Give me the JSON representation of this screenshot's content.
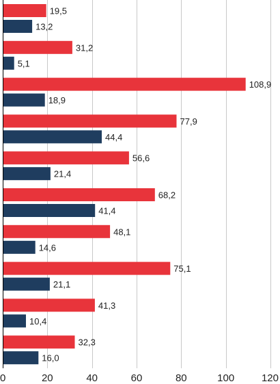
{
  "chart_data": {
    "type": "bar",
    "orientation": "horizontal",
    "grouped": true,
    "title": "",
    "xlabel": "",
    "ylabel": "",
    "xlim": [
      0,
      120
    ],
    "x_ticks": [
      "0",
      "20",
      "40",
      "60",
      "80",
      "100",
      "120"
    ],
    "x_tick_values": [
      0,
      20,
      40,
      60,
      80,
      100,
      120
    ],
    "grid": true,
    "legend": "none",
    "series": [
      {
        "color": "#e8343b",
        "values": [
          19.5,
          31.2,
          108.9,
          77.9,
          56.6,
          68.2,
          48.1,
          75.1,
          41.3,
          32.3
        ],
        "labels": [
          "19,5",
          "31,2",
          "108,9",
          "77,9",
          "56,6",
          "68,2",
          "48,1",
          "75,1",
          "41,3",
          "32,3"
        ]
      },
      {
        "color": "#1f3d5f",
        "values": [
          13.2,
          5.1,
          18.9,
          44.4,
          21.4,
          41.4,
          14.6,
          21.1,
          10.4,
          16.0
        ],
        "labels": [
          "13,2",
          "5,1",
          "18,9",
          "44,4",
          "21,4",
          "41,4",
          "14,6",
          "21,1",
          "10,4",
          "16,0"
        ]
      }
    ]
  }
}
